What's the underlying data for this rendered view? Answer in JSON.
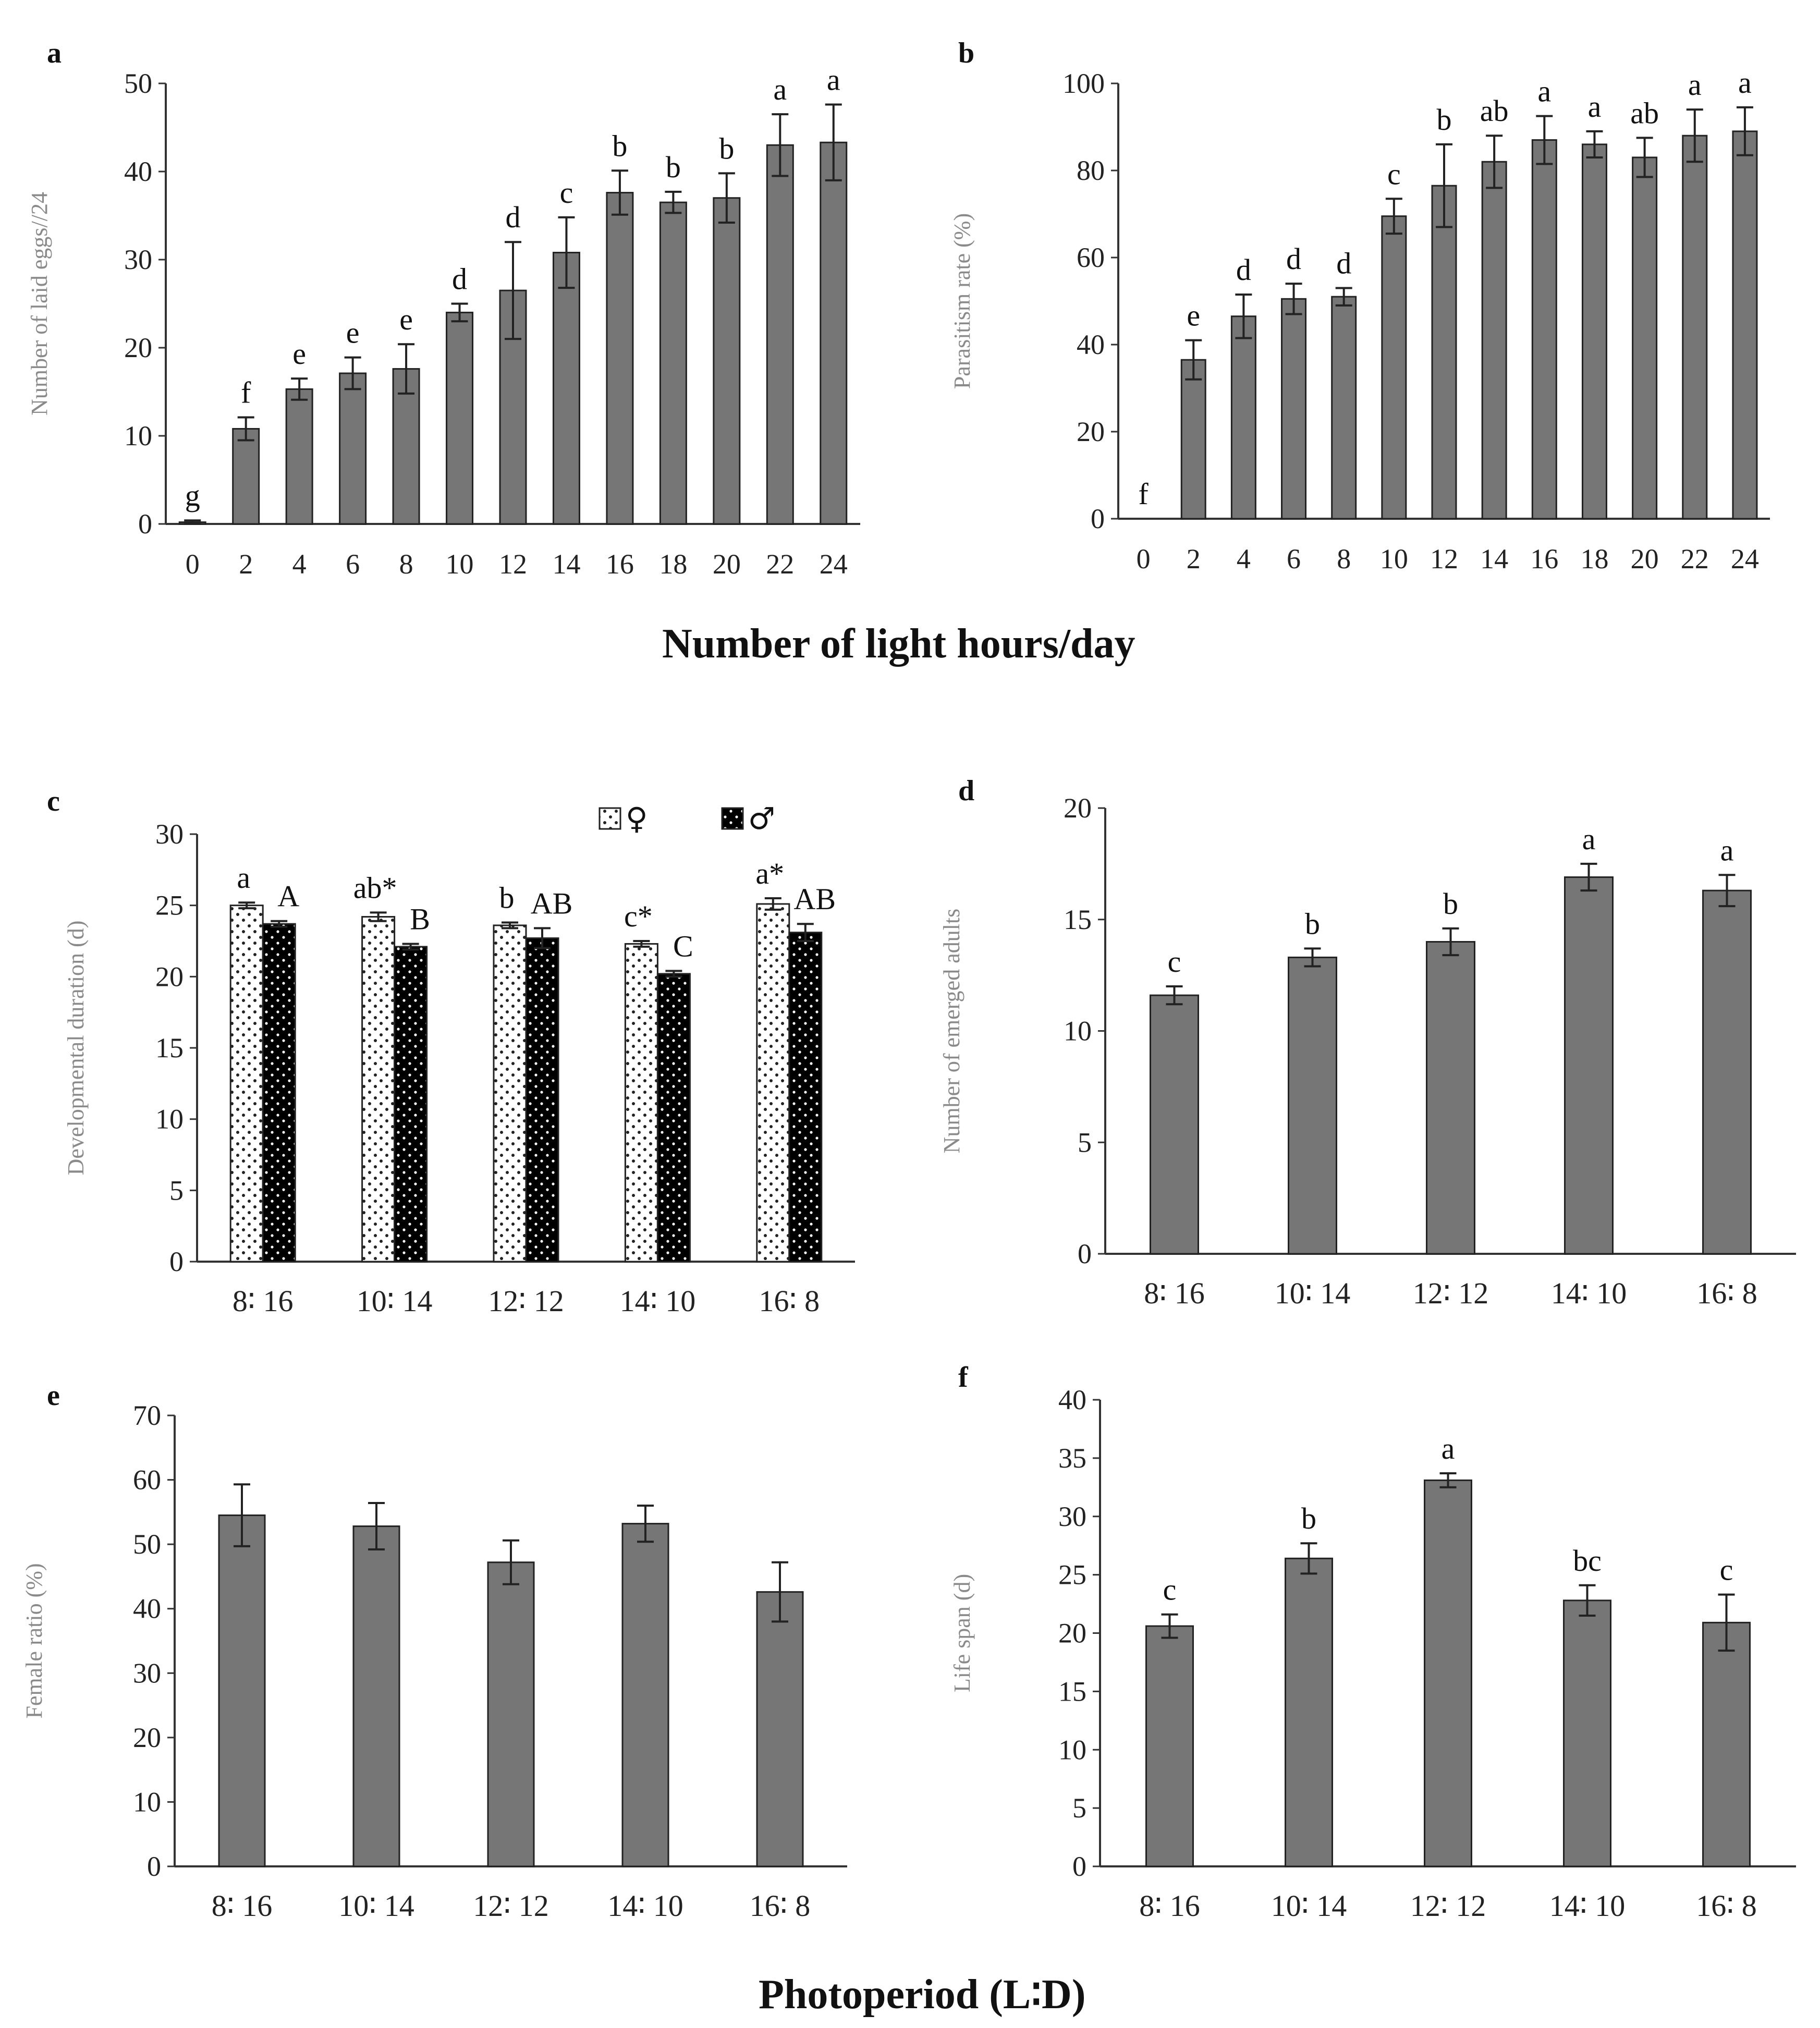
{
  "figure": {
    "top_xlabel": "Number of light hours/day",
    "bottom_xlabel": "Photoperiod (L∶D)"
  },
  "chart_data": [
    {
      "panel": "a",
      "type": "bar",
      "categories": [
        "0",
        "2",
        "4",
        "6",
        "8",
        "10",
        "12",
        "14",
        "16",
        "18",
        "20",
        "22",
        "24"
      ],
      "series": [
        {
          "values": [
            0.2,
            10.8,
            15.3,
            17.1,
            17.6,
            24.0,
            26.5,
            30.8,
            37.6,
            36.5,
            37.0,
            43.0,
            43.3
          ],
          "errors": [
            0.2,
            1.3,
            1.2,
            1.8,
            2.8,
            1.0,
            5.5,
            4.0,
            2.5,
            1.2,
            2.8,
            3.5,
            4.3
          ],
          "color": "#767676"
        }
      ],
      "letters": [
        "g",
        "f",
        "e",
        "e",
        "e",
        "d",
        "d",
        "c",
        "b",
        "b",
        "b",
        "a",
        "a"
      ],
      "ylabel": "Number of laid eggs//24",
      "ylim": [
        0,
        50
      ],
      "yticks": [
        0,
        10,
        20,
        30,
        40,
        50
      ],
      "grid": false
    },
    {
      "panel": "b",
      "type": "bar",
      "categories": [
        "0",
        "2",
        "4",
        "6",
        "8",
        "10",
        "12",
        "14",
        "16",
        "18",
        "20",
        "22",
        "24"
      ],
      "series": [
        {
          "values": [
            0,
            36.5,
            46.5,
            50.5,
            51.0,
            69.5,
            76.5,
            82.0,
            87.0,
            86.0,
            83.0,
            88.0,
            89.0
          ],
          "errors": [
            0,
            4.5,
            5.0,
            3.5,
            2.0,
            4.0,
            9.5,
            6.0,
            5.5,
            3.0,
            4.5,
            6.0,
            5.5
          ],
          "color": "#767676"
        }
      ],
      "letters": [
        "f",
        "e",
        "d",
        "d",
        "d",
        "c",
        "b",
        "ab",
        "a",
        "a",
        "ab",
        "a",
        "a"
      ],
      "ylabel": "Parasitism rate (%)",
      "ylim": [
        0,
        100
      ],
      "yticks": [
        0,
        20,
        40,
        60,
        80,
        100
      ],
      "grid": false
    },
    {
      "panel": "c",
      "type": "bar",
      "categories": [
        "8∶ 16",
        "10∶ 14",
        "12∶ 12",
        "14∶ 10",
        "16∶ 8"
      ],
      "series": [
        {
          "name": "♀",
          "values": [
            25.0,
            24.2,
            23.6,
            22.3,
            25.1
          ],
          "errors": [
            0.2,
            0.3,
            0.2,
            0.2,
            0.4
          ],
          "color": "#ffffff",
          "pattern": "dots-dark"
        },
        {
          "name": "♂",
          "values": [
            23.7,
            22.1,
            22.7,
            20.2,
            23.1
          ],
          "errors": [
            0.2,
            0.2,
            0.7,
            0.2,
            0.6
          ],
          "color": "#000000",
          "pattern": "dots-light"
        }
      ],
      "letters_female": [
        "a",
        "ab*",
        "b",
        "c*",
        "a*"
      ],
      "letters_male": [
        "A",
        "B",
        "AB",
        "C",
        "AB"
      ],
      "ylabel": "Developmental duration (d)",
      "ylim": [
        0,
        30
      ],
      "yticks": [
        0,
        5,
        10,
        15,
        20,
        25,
        30
      ],
      "legend": "top-right",
      "grid": false
    },
    {
      "panel": "d",
      "type": "bar",
      "categories": [
        "8∶ 16",
        "10∶ 14",
        "12∶ 12",
        "14∶ 10",
        "16∶ 8"
      ],
      "series": [
        {
          "values": [
            11.6,
            13.3,
            14.0,
            16.9,
            16.3
          ],
          "errors": [
            0.4,
            0.4,
            0.6,
            0.6,
            0.7
          ],
          "color": "#767676"
        }
      ],
      "letters": [
        "c",
        "b",
        "b",
        "a",
        "a"
      ],
      "ylabel": "Number of emerged adults",
      "ylim": [
        0,
        20
      ],
      "yticks": [
        0,
        5,
        10,
        15,
        20
      ],
      "grid": false
    },
    {
      "panel": "e",
      "type": "bar",
      "categories": [
        "8∶ 16",
        "10∶ 14",
        "12∶ 12",
        "14∶ 10",
        "16∶ 8"
      ],
      "series": [
        {
          "values": [
            54.5,
            52.8,
            47.2,
            53.2,
            42.6
          ],
          "errors": [
            4.8,
            3.6,
            3.4,
            2.8,
            4.6
          ],
          "color": "#767676"
        }
      ],
      "ylabel": "Female ratio (%)",
      "ylim": [
        0,
        70
      ],
      "yticks": [
        0,
        10,
        20,
        30,
        40,
        50,
        60,
        70
      ],
      "grid": false
    },
    {
      "panel": "f",
      "type": "bar",
      "categories": [
        "8∶ 16",
        "10∶ 14",
        "12∶ 12",
        "14∶ 10",
        "16∶ 8"
      ],
      "series": [
        {
          "values": [
            20.6,
            26.4,
            33.1,
            22.8,
            20.9
          ],
          "errors": [
            1.0,
            1.3,
            0.6,
            1.3,
            2.4
          ],
          "color": "#767676"
        }
      ],
      "letters": [
        "c",
        "b",
        "a",
        "bc",
        "c"
      ],
      "ylabel": "Life span (d)",
      "ylim": [
        0,
        40
      ],
      "yticks": [
        0,
        5,
        10,
        15,
        20,
        25,
        30,
        35,
        40
      ],
      "grid": false
    }
  ]
}
